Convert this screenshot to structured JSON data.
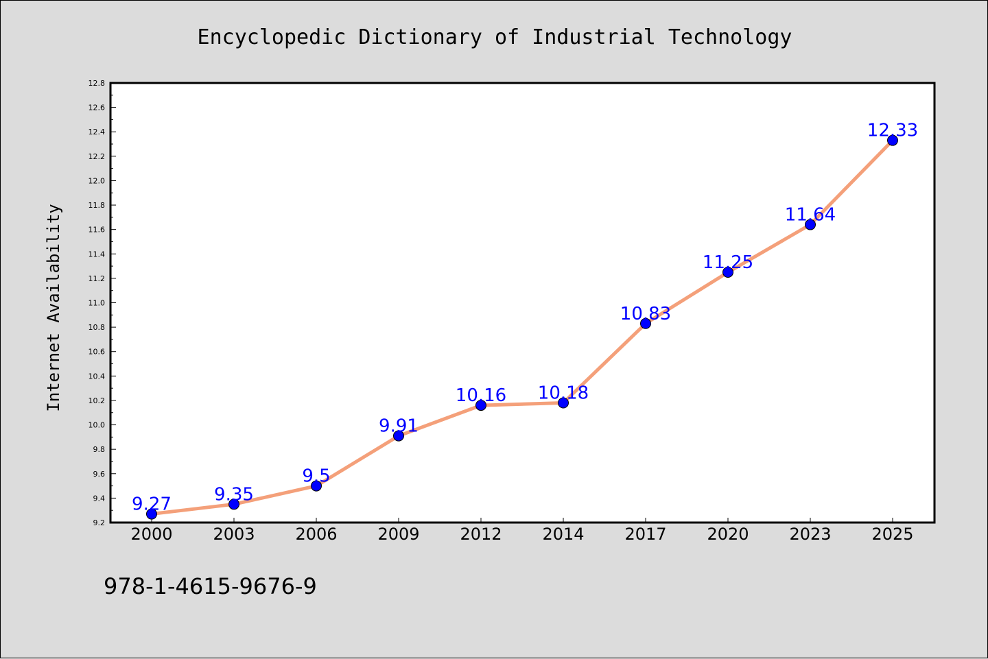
{
  "chart_data": {
    "type": "line",
    "title": "Encyclopedic Dictionary of Industrial Technology",
    "xlabel": "",
    "ylabel": "Internet Availability",
    "categories": [
      "2000",
      "2003",
      "2006",
      "2009",
      "2012",
      "2014",
      "2017",
      "2020",
      "2023",
      "2025"
    ],
    "values": [
      9.27,
      9.35,
      9.5,
      9.91,
      10.16,
      10.18,
      10.83,
      11.25,
      11.64,
      12.33
    ],
    "data_labels": [
      "9.27",
      "9.35",
      "9.5",
      "9.91",
      "10.16",
      "10.18",
      "10.83",
      "11.25",
      "11.64",
      "12.33"
    ],
    "ylim": [
      9.2,
      12.8
    ],
    "yticks": [
      "9.2",
      "9.4",
      "9.6",
      "9.8",
      "10.0",
      "10.2",
      "10.4",
      "10.6",
      "10.8",
      "11.0",
      "11.2",
      "11.4",
      "11.6",
      "11.8",
      "12.0",
      "12.2",
      "12.4",
      "12.6",
      "12.8"
    ],
    "grid": false,
    "line_color": "#f4a07a",
    "marker_color": "#0000ff",
    "label_color": "#0000ff"
  },
  "footer": {
    "isbn": "978-1-4615-9676-9"
  }
}
